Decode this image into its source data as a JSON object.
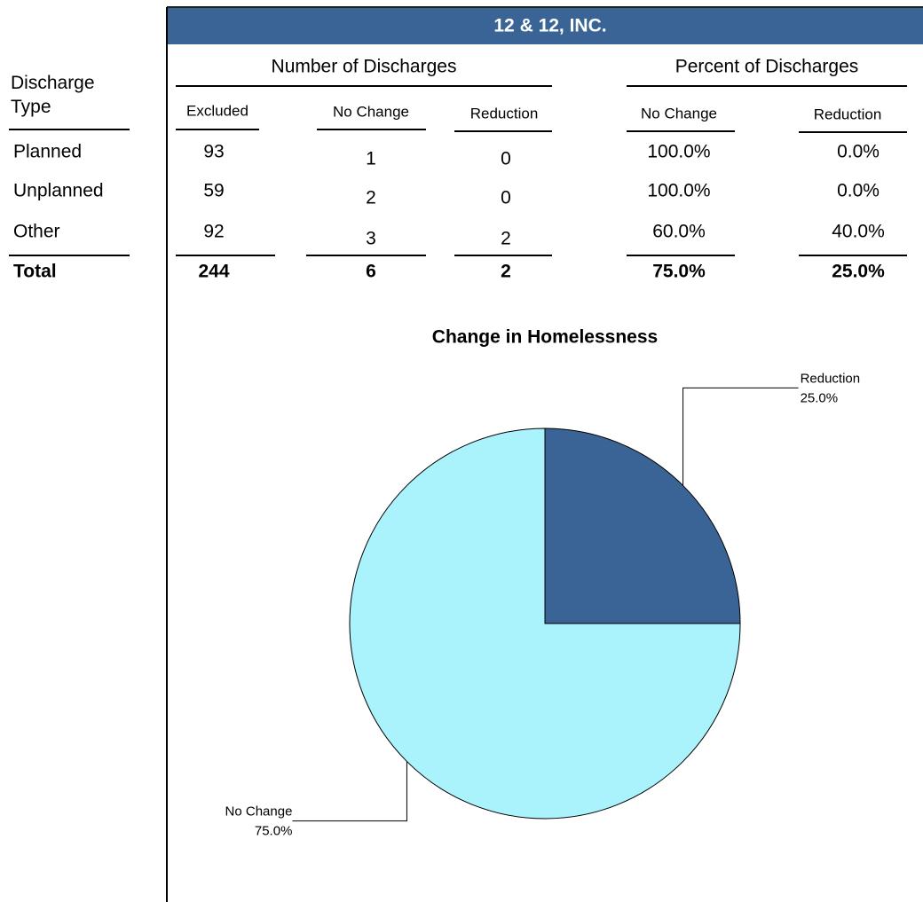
{
  "header": {
    "title": "12 & 12, INC."
  },
  "table": {
    "row_header": "Discharge Type",
    "groups": [
      "Number of Discharges",
      "Percent of Discharges"
    ],
    "columns": [
      "Excluded",
      "No Change",
      "Reduction",
      "No Change",
      "Reduction"
    ],
    "rows": [
      [
        "Planned",
        "93",
        "1",
        "0",
        "100.0%",
        "0.0%"
      ],
      [
        "Unplanned",
        "59",
        "2",
        "0",
        "100.0%",
        "0.0%"
      ],
      [
        "Other",
        "92",
        "3",
        "2",
        "60.0%",
        "40.0%"
      ]
    ],
    "total": [
      "Total",
      "244",
      "6",
      "2",
      "75.0%",
      "25.0%"
    ]
  },
  "chart_data": {
    "type": "pie",
    "title": "Change in Homelessness",
    "categories": [
      "Reduction",
      "No Change"
    ],
    "values": [
      25,
      75
    ],
    "value_labels": [
      "25.0%",
      "75.0%"
    ],
    "colors": [
      "#3a6495",
      "#aaf2fc"
    ]
  }
}
